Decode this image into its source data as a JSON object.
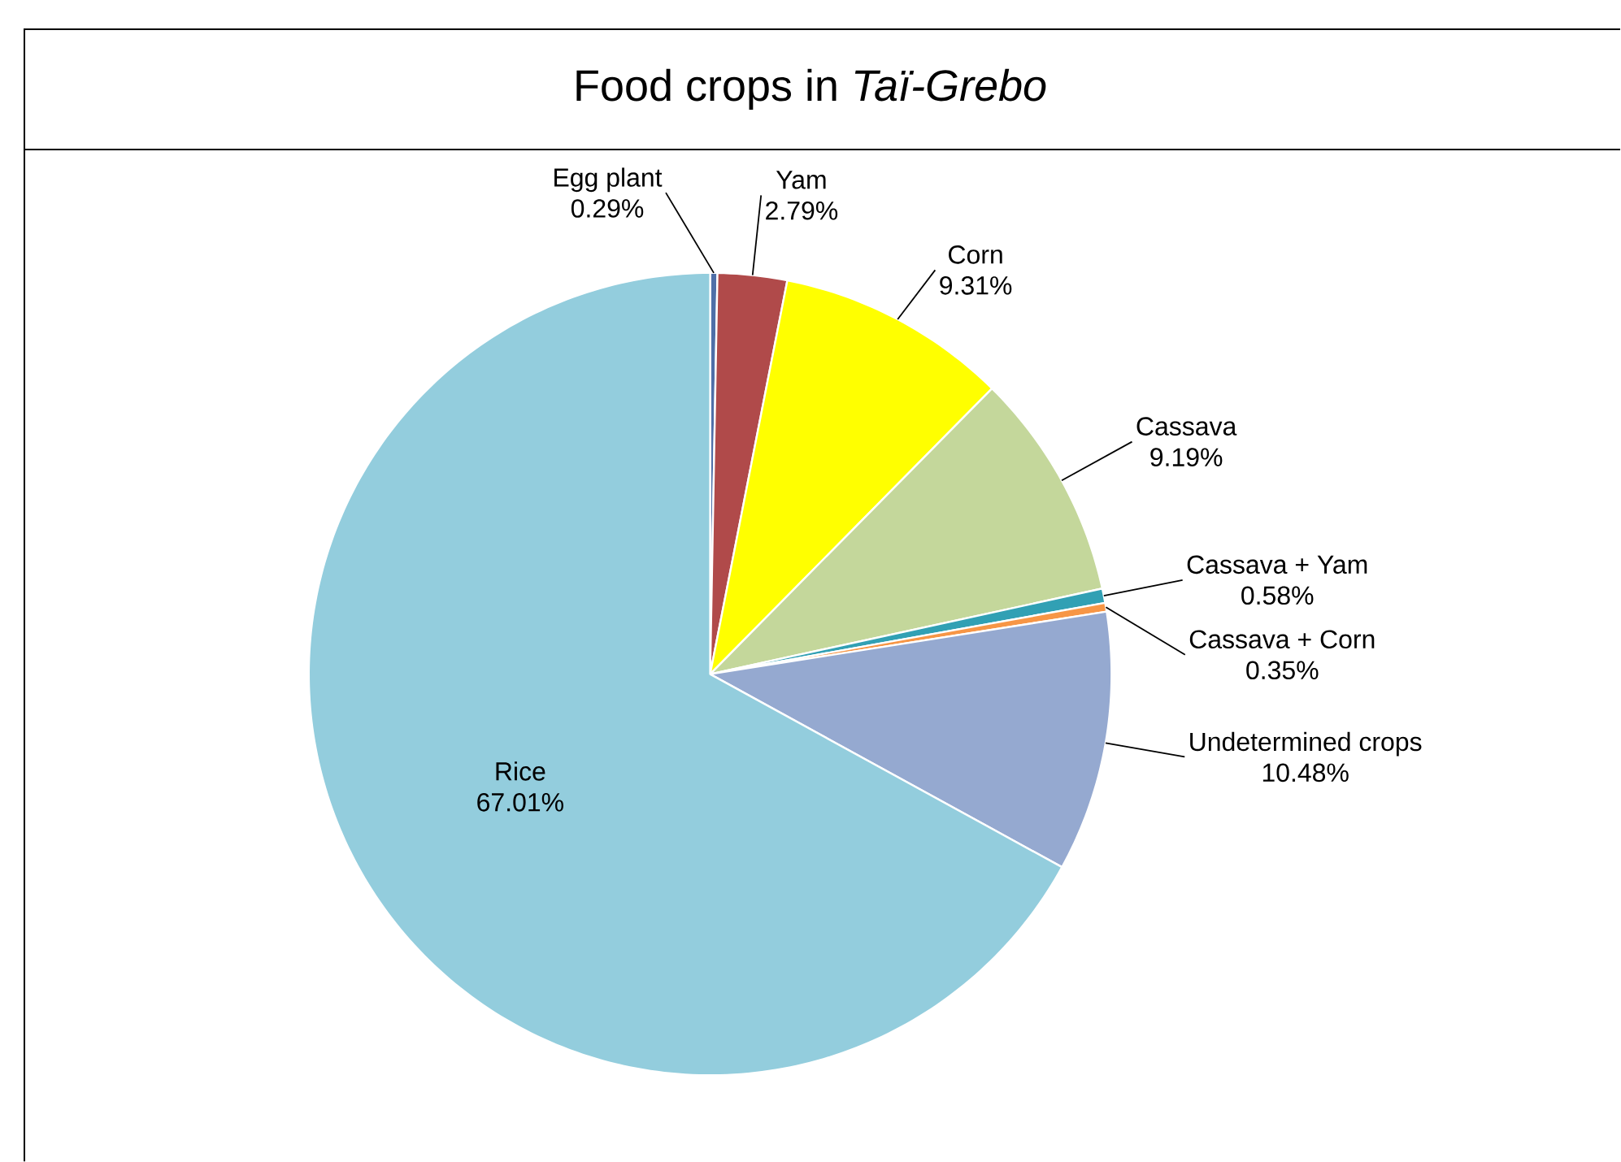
{
  "chart_data": {
    "type": "pie",
    "title": "Food crops in *Taï-Grebo*",
    "categories": [
      "Egg plant",
      "Yam",
      "Corn",
      "Cassava",
      "Cassava + Yam",
      "Cassava + Corn",
      "Undetermined crops",
      "Rice"
    ],
    "values": [
      0.29,
      2.79,
      9.31,
      9.19,
      0.58,
      0.35,
      10.48,
      67.01
    ],
    "colors": [
      "#4f6fa8",
      "#b04a4a",
      "#ffff00",
      "#c4d79b",
      "#31a0b4",
      "#f79646",
      "#95a9d0",
      "#93cddd"
    ],
    "value_labels": [
      "0.29%",
      "2.79%",
      "9.31%",
      "9.19%",
      "0.58%",
      "0.35%",
      "10.48%",
      "67.01%"
    ]
  }
}
